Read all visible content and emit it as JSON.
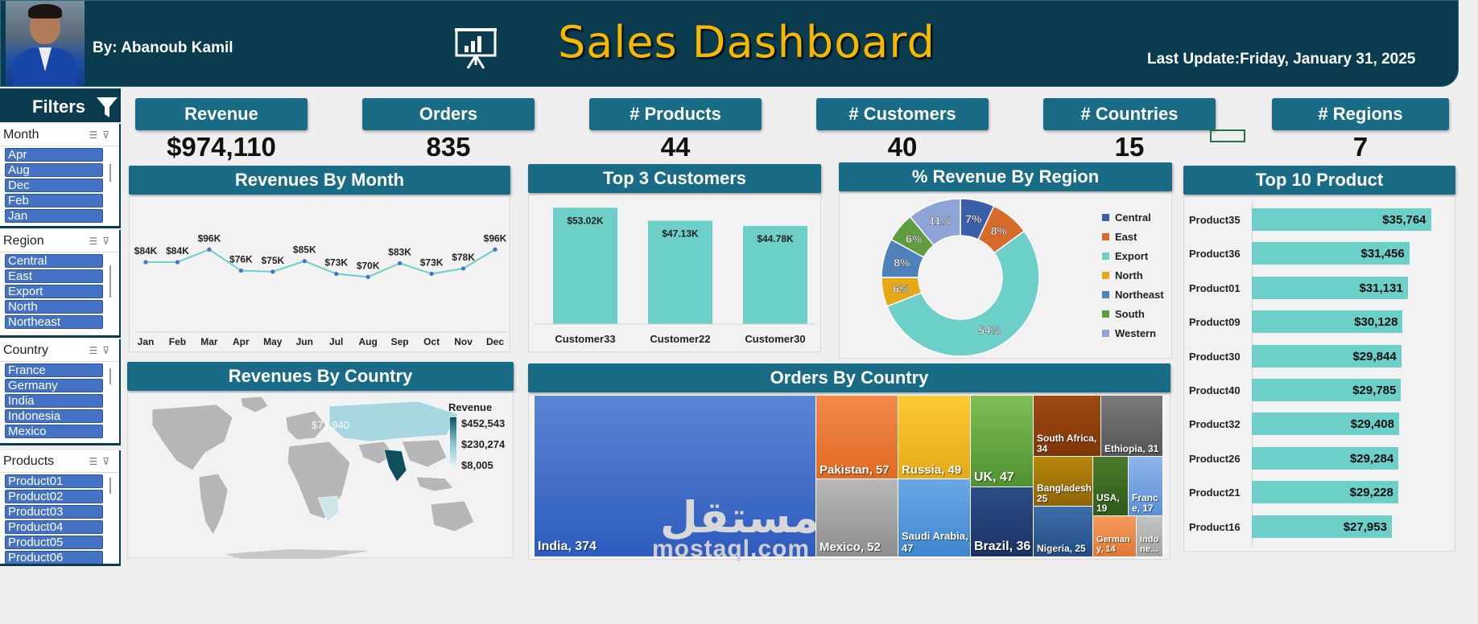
{
  "header": {
    "byline": "By: Abanoub Kamil",
    "title": "Sales Dashboard",
    "last_update": "Last Update:Friday, January 31, 2025"
  },
  "filters": {
    "label": "Filters",
    "slicers": [
      {
        "title": "Month",
        "items": [
          "Apr",
          "Aug",
          "Dec",
          "Feb",
          "Jan"
        ]
      },
      {
        "title": "Region",
        "items": [
          "Central",
          "East",
          "Export",
          "North",
          "Northeast"
        ]
      },
      {
        "title": "Country",
        "items": [
          "France",
          "Germany",
          "India",
          "Indonesia",
          "Mexico"
        ]
      },
      {
        "title": "Products",
        "items": [
          "Product01",
          "Product02",
          "Product03",
          "Product04",
          "Product05",
          "Product06"
        ]
      }
    ]
  },
  "kpis": [
    {
      "label": "Revenue",
      "value": "$974,110"
    },
    {
      "label": "Orders",
      "value": "835"
    },
    {
      "label": "# Products",
      "value": "44"
    },
    {
      "label": "# Customers",
      "value": "40"
    },
    {
      "label": "# Countries",
      "value": "15"
    },
    {
      "label": "# Regions",
      "value": "7"
    }
  ],
  "panels": {
    "rev_month": "Revenues By Month",
    "top3": "Top 3 Customers",
    "region": "% Revenue By Region",
    "top10": "Top 10 Product",
    "rev_country": "Revenues By Country",
    "orders_country": "Orders By Country"
  },
  "chart_data": [
    {
      "type": "line",
      "title": "Revenues By Month",
      "categories": [
        "Jan",
        "Feb",
        "Mar",
        "Apr",
        "May",
        "Jun",
        "Jul",
        "Aug",
        "Sep",
        "Oct",
        "Nov",
        "Dec"
      ],
      "values": [
        84,
        84,
        96,
        76,
        75,
        85,
        73,
        70,
        83,
        73,
        78,
        96
      ],
      "labels": [
        "$84K",
        "$84K",
        "$96K",
        "$76K",
        "$75K",
        "$85K",
        "$73K",
        "$70K",
        "$83K",
        "$73K",
        "$78K",
        "$96K"
      ],
      "color": "#6ccfc8",
      "marker_color": "#4472c4"
    },
    {
      "type": "bar",
      "title": "Top 3 Customers",
      "categories": [
        "Customer33",
        "Customer22",
        "Customer30"
      ],
      "values": [
        53.02,
        47.13,
        44.78
      ],
      "labels": [
        "$53.02K",
        "$47.13K",
        "$44.78K"
      ],
      "color": "#6ccfc8"
    },
    {
      "type": "pie",
      "title": "% Revenue By Region",
      "categories": [
        "Central",
        "East",
        "Export",
        "North",
        "Northeast",
        "South",
        "Western"
      ],
      "values": [
        7,
        8,
        54,
        6,
        8,
        6,
        11
      ],
      "labels": [
        "7%",
        "8%",
        "54%",
        "6%",
        "8%",
        "6%",
        "11%"
      ],
      "colors": [
        "#3a5fa8",
        "#d86b2b",
        "#6ccfc8",
        "#e6a817",
        "#4f81bd",
        "#5e9e3e",
        "#8fa4d6"
      ]
    },
    {
      "type": "bar",
      "title": "Top 10 Product",
      "categories": [
        "Product35",
        "Product36",
        "Product01",
        "Product09",
        "Product30",
        "Product40",
        "Product32",
        "Product26",
        "Product21",
        "Product16"
      ],
      "values": [
        35764,
        31456,
        31131,
        30128,
        29844,
        29785,
        29408,
        29284,
        29228,
        27953
      ],
      "labels": [
        "$35,764",
        "$31,456",
        "$31,131",
        "$30,128",
        "$29,844",
        "$29,785",
        "$29,408",
        "$29,284",
        "$29,228",
        "$27,953"
      ],
      "color": "#6ccfc8"
    },
    {
      "type": "heatmap",
      "title": "Revenues By Country",
      "legend_title": "Revenue",
      "legend_labels": [
        "$452,543",
        "$230,274",
        "$8,005"
      ],
      "annotation": "$71,940"
    },
    {
      "type": "heatmap",
      "title": "Orders By Country",
      "categories": [
        "India",
        "Pakistan",
        "Mexico",
        "Russia",
        "Saudi Arabia",
        "UK",
        "Brazil",
        "South Africa",
        "Ethiopia",
        "Bangladesh",
        "Nigeria",
        "USA",
        "France",
        "Germany",
        "Indonesia"
      ],
      "values": [
        374,
        57,
        52,
        49,
        47,
        47,
        36,
        34,
        31,
        25,
        25,
        19,
        17,
        14,
        null
      ],
      "labels": [
        "India, 374",
        "Pakistan, 57",
        "Mexico, 52",
        "Russia, 49",
        "Saudi Arabia, 47",
        "UK, 47",
        "Brazil, 36",
        "South Africa, 34",
        "Ethiopia, 31",
        "Bangladesh, 25",
        "Nigeria, 25",
        "USA, 19",
        "Franc e, 17",
        "German y, 14",
        "Indo ne..."
      ]
    }
  ],
  "watermark": {
    "latin": "mostaql.com",
    "arabic": "مستقل"
  }
}
